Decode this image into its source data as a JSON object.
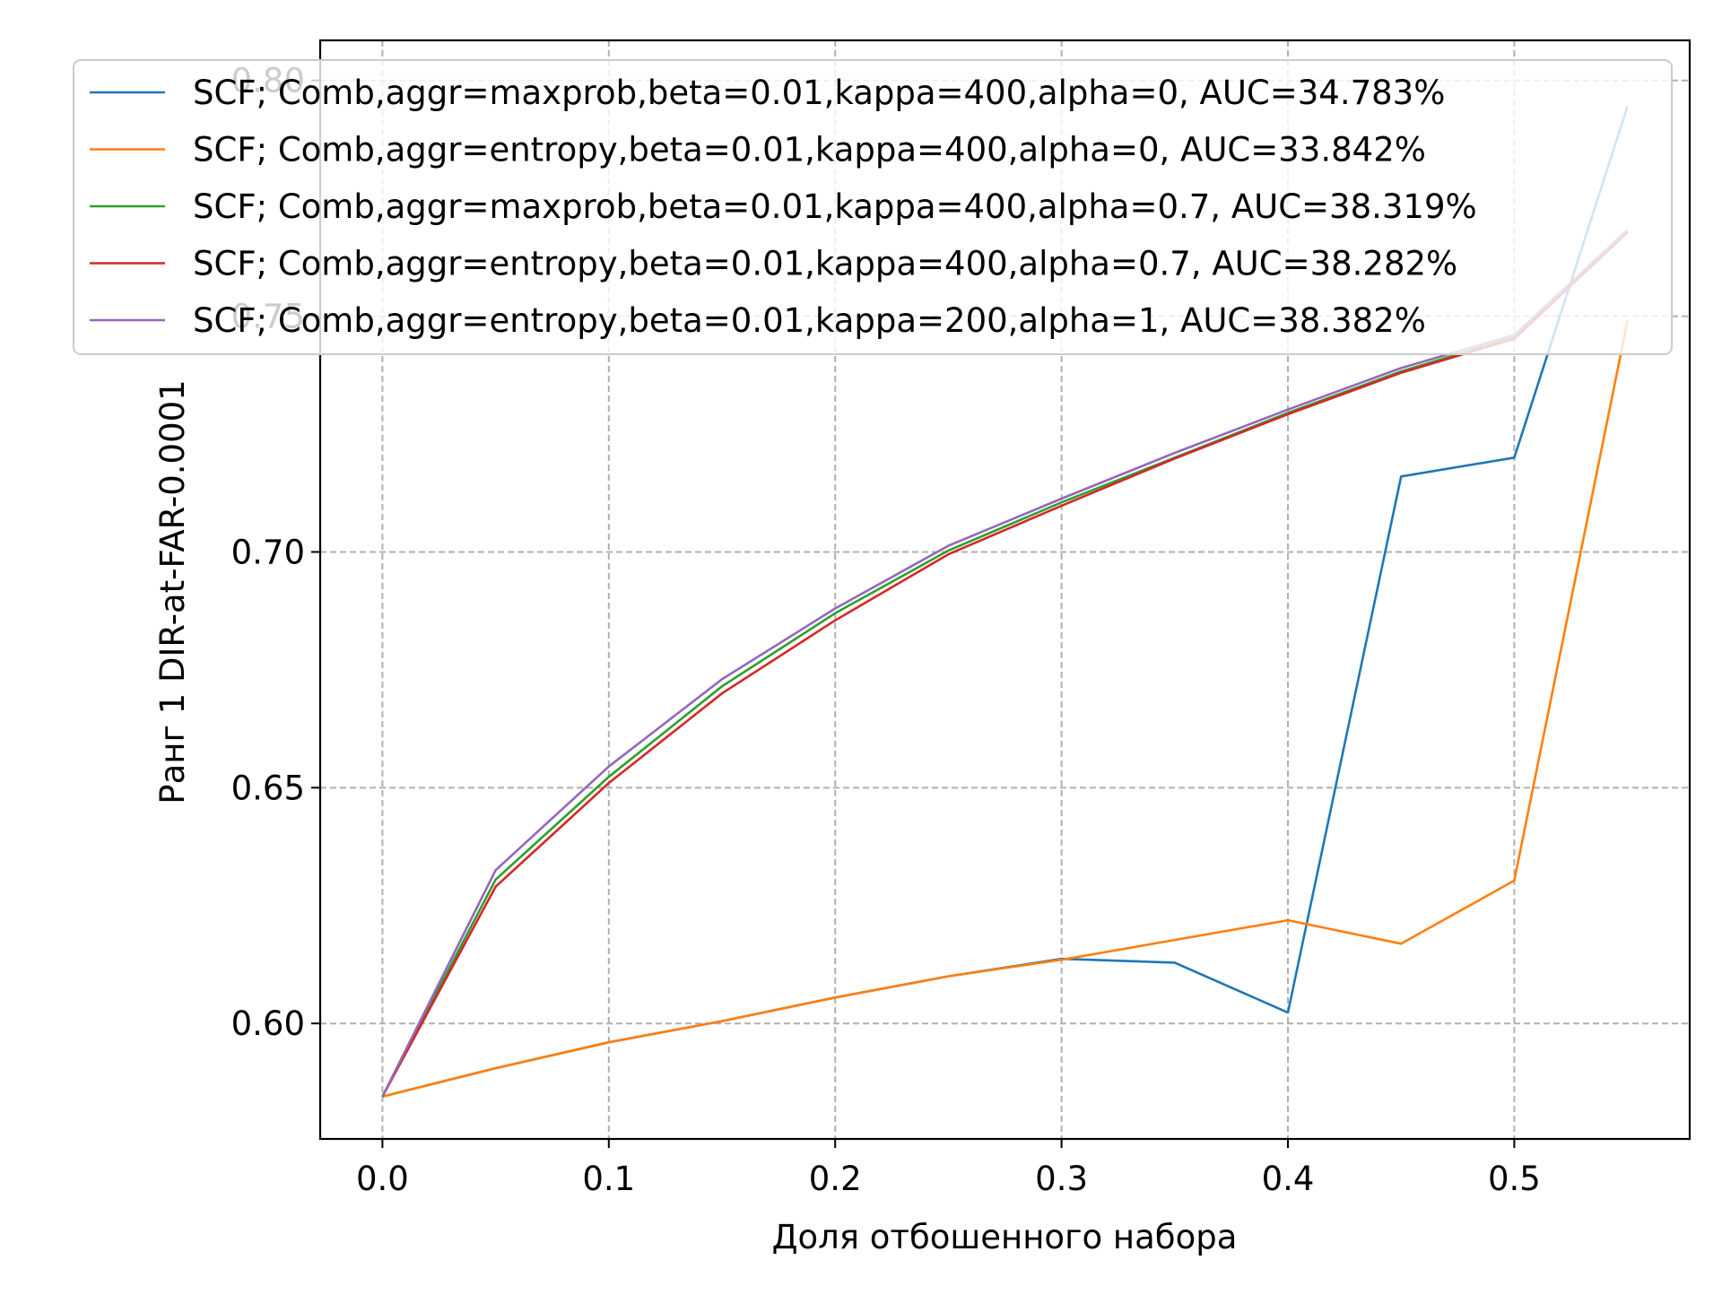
{
  "chart_data": {
    "type": "line",
    "xlabel": "Доля отбошенного набора",
    "ylabel": "Ранг 1 DIR-at-FAR-0.0001",
    "xlim": [
      -0.0275,
      0.5775
    ],
    "ylim": [
      0.5755,
      0.8085
    ],
    "xticks": [
      0.0,
      0.1,
      0.2,
      0.3,
      0.4,
      0.5
    ],
    "xtick_labels": [
      "0.0",
      "0.1",
      "0.2",
      "0.3",
      "0.4",
      "0.5"
    ],
    "yticks": [
      0.6,
      0.65,
      0.7,
      0.75,
      0.8
    ],
    "ytick_labels": [
      "0.60",
      "0.65",
      "0.70",
      "0.75",
      "0.80"
    ],
    "grid": true,
    "legend_position": "upper-right",
    "x": [
      0.0,
      0.05,
      0.1,
      0.15,
      0.2,
      0.25,
      0.3,
      0.35,
      0.4,
      0.45,
      0.5,
      0.55
    ],
    "series": [
      {
        "name": "SCF;  Comb,aggr=maxprob,beta=0.01,kappa=400,alpha=0, AUC=34.783%",
        "color": "#1f77b4",
        "values": [
          0.5845,
          0.5905,
          0.596,
          0.6005,
          0.6055,
          0.61,
          0.6137,
          0.6129,
          0.6023,
          0.716,
          0.72,
          0.7945
        ]
      },
      {
        "name": "SCF;  Comb,aggr=entropy,beta=0.01,kappa=400,alpha=0, AUC=33.842%",
        "color": "#ff7f0e",
        "values": [
          0.5845,
          0.5905,
          0.596,
          0.6005,
          0.6055,
          0.61,
          0.6135,
          0.6177,
          0.6219,
          0.6169,
          0.6303,
          0.749
        ]
      },
      {
        "name": "SCF;  Comb,aggr=maxprob,beta=0.01,kappa=400,alpha=0.7, AUC=38.319%",
        "color": "#2ca02c",
        "values": [
          0.5845,
          0.6305,
          0.6523,
          0.6715,
          0.687,
          0.7003,
          0.7105,
          0.72,
          0.7295,
          0.7383,
          0.7455,
          0.768
        ]
      },
      {
        "name": "SCF;  Comb,aggr=entropy,beta=0.01,kappa=400,alpha=0.7, AUC=38.282%",
        "color": "#d62728",
        "values": [
          0.5845,
          0.629,
          0.651,
          0.67,
          0.6855,
          0.6995,
          0.7098,
          0.7198,
          0.7292,
          0.738,
          0.7452,
          0.7678
        ]
      },
      {
        "name": "SCF;  Comb,aggr=entropy,beta=0.01,kappa=200,alpha=1, AUC=38.382%",
        "color": "#9467bd",
        "values": [
          0.5845,
          0.6325,
          0.6545,
          0.673,
          0.688,
          0.7013,
          0.7113,
          0.721,
          0.7302,
          0.739,
          0.746,
          0.7683
        ]
      }
    ]
  }
}
